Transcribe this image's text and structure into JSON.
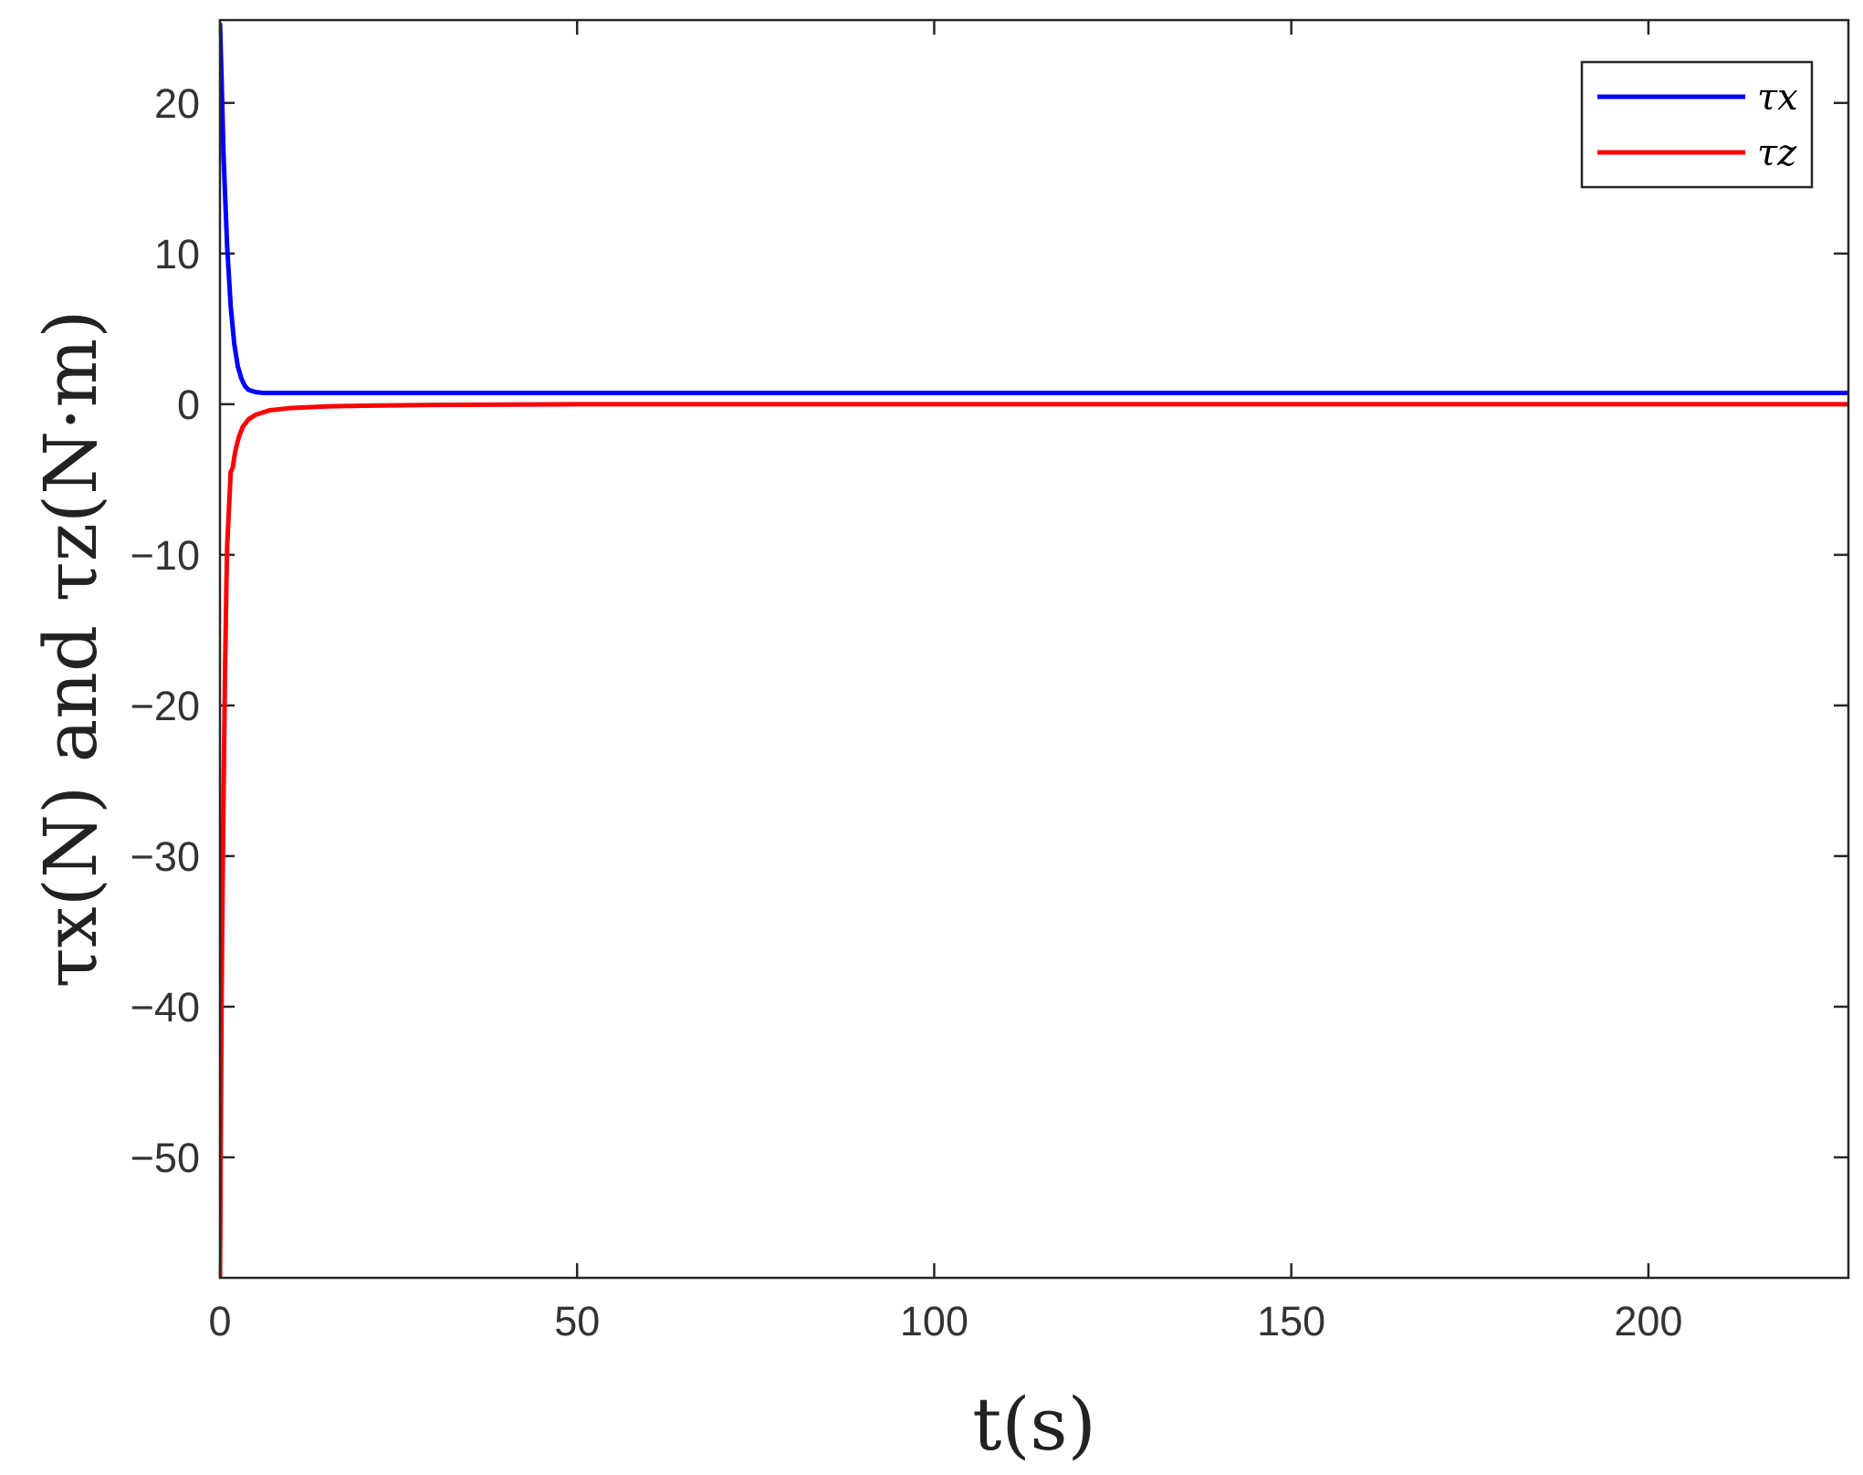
{
  "chart_data": {
    "type": "line",
    "xlabel": "t(s)",
    "ylabel": "τx(N) and τz(N·m)",
    "xlim": [
      0,
      228
    ],
    "ylim": [
      -58,
      25.5
    ],
    "xticks": [
      0,
      50,
      100,
      150,
      200
    ],
    "yticks": [
      20,
      10,
      0,
      -10,
      -20,
      -30,
      -40,
      -50
    ],
    "xtick_labels": [
      "0",
      "50",
      "100",
      "150",
      "200"
    ],
    "ytick_labels": [
      "20",
      "10",
      "0",
      "−10",
      "−20",
      "−30",
      "−40",
      "−50"
    ],
    "grid": false,
    "legend_position": "top-right",
    "series": [
      {
        "name": "τx",
        "color": "#0000ff",
        "x": [
          0,
          0.2,
          0.5,
          1,
          1.5,
          2,
          2.5,
          3,
          3.5,
          4,
          5,
          6,
          8,
          10,
          20,
          50,
          100,
          150,
          200,
          228
        ],
        "y": [
          25.3,
          22,
          16.5,
          10.5,
          6.5,
          4,
          2.5,
          1.7,
          1.2,
          0.95,
          0.8,
          0.75,
          0.75,
          0.75,
          0.75,
          0.75,
          0.75,
          0.75,
          0.75,
          0.75
        ]
      },
      {
        "name": "τz",
        "color": "#ff0000",
        "x": [
          0,
          0.15,
          0.3,
          0.5,
          0.7,
          0.9,
          1.0,
          1.2,
          1.5,
          1.8,
          2.0,
          2.3,
          2.7,
          3.2,
          4,
          5,
          7,
          10,
          15,
          20,
          30,
          50,
          100,
          150,
          200,
          228
        ],
        "y": [
          -58,
          -45,
          -35,
          -26,
          -18,
          -12,
          -9.5,
          -7.5,
          -4.5,
          -4.2,
          -3.5,
          -2.8,
          -2.1,
          -1.5,
          -1.0,
          -0.7,
          -0.4,
          -0.25,
          -0.15,
          -0.1,
          -0.05,
          0,
          0,
          0,
          0,
          0
        ]
      }
    ]
  }
}
